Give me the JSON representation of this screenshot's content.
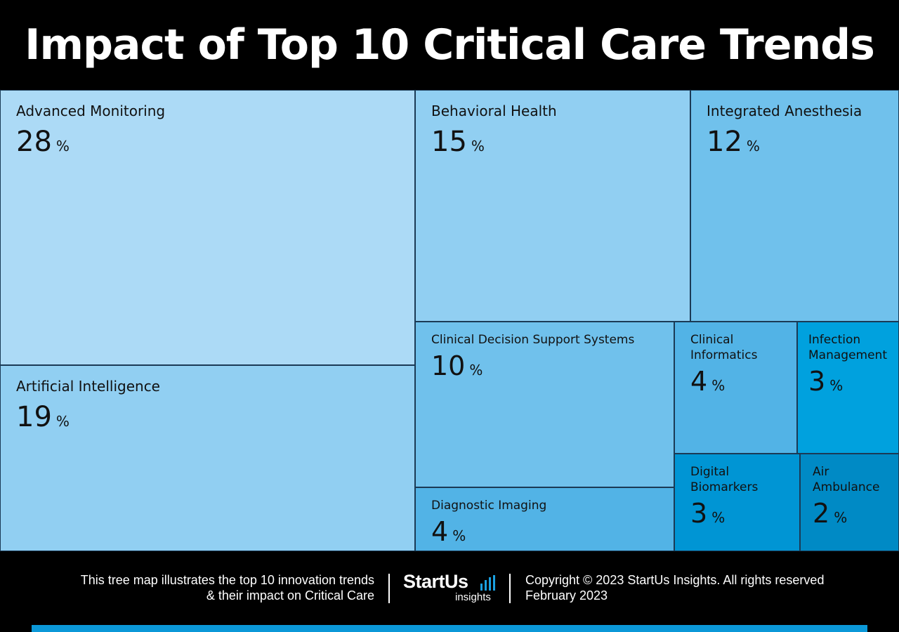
{
  "title": "Impact of Top 10 Critical Care Trends",
  "chart_data": {
    "type": "treemap",
    "unit": "%",
    "items": [
      {
        "label": "Advanced Monitoring",
        "value": 28,
        "color": "#acdaf6"
      },
      {
        "label": "Artificial Intelligence",
        "value": 19,
        "color": "#91cff2"
      },
      {
        "label": "Behavioral Health",
        "value": 15,
        "color": "#91cff2"
      },
      {
        "label": "Integrated Anesthesia",
        "value": 12,
        "color": "#70c1ec"
      },
      {
        "label": "Clinical Decision Support Systems",
        "value": 10,
        "color": "#70c1ec"
      },
      {
        "label": "Diagnostic Imaging",
        "value": 4,
        "color": "#52b3e6"
      },
      {
        "label": "Clinical\nInformatics",
        "value": 4,
        "color": "#52b3e6"
      },
      {
        "label": "Infection\nManagement",
        "value": 3,
        "color": "#00a1de"
      },
      {
        "label": "Digital\nBiomarkers",
        "value": 3,
        "color": "#0095d4"
      },
      {
        "label": "Air\nAmbulance",
        "value": 2,
        "color": "#008ac5"
      }
    ]
  },
  "footer": {
    "description_line1": "This tree map illustrates the top 10 innovation trends",
    "description_line2": "& their impact on Critical Care",
    "logo_main": "StartUs",
    "logo_sub": "insights",
    "copyright": "Copyright © 2023 StartUs Insights. All rights reserved",
    "date": "February 2023",
    "accent_color": "#0b98d8"
  }
}
